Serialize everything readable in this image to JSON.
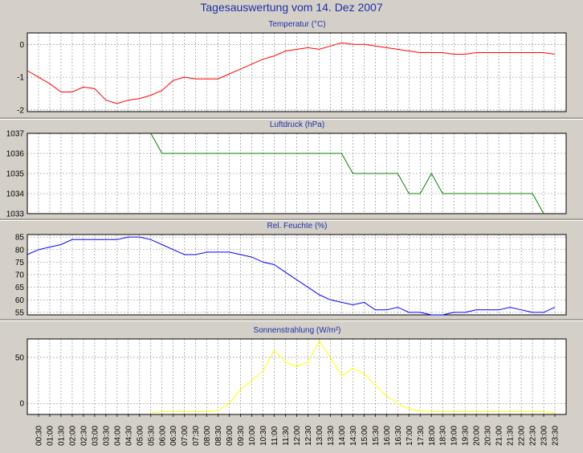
{
  "page_title": "Tagesauswertung vom 14. Dez 2007",
  "chart_data": [
    {
      "type": "line",
      "title": "Temperatur (°C)",
      "ylim": [
        -2.05,
        0.35
      ],
      "yticks": [
        0,
        -1,
        -2
      ],
      "color": "#ff0000",
      "x": [
        "00:00",
        "00:30",
        "01:00",
        "01:30",
        "02:00",
        "02:30",
        "03:00",
        "03:30",
        "04:00",
        "04:30",
        "05:00",
        "05:30",
        "06:00",
        "06:30",
        "07:00",
        "07:30",
        "08:00",
        "08:30",
        "09:00",
        "09:30",
        "10:00",
        "10:30",
        "11:00",
        "11:30",
        "12:00",
        "12:30",
        "13:00",
        "13:30",
        "14:00",
        "14:30",
        "15:00",
        "15:30",
        "16:00",
        "16:30",
        "17:00",
        "17:30",
        "18:00",
        "18:30",
        "19:00",
        "19:30",
        "20:00",
        "20:30",
        "21:00",
        "21:30",
        "22:00",
        "22:30",
        "23:00",
        "23:30"
      ],
      "values": [
        -0.8,
        -1.0,
        -1.2,
        -1.45,
        -1.45,
        -1.3,
        -1.35,
        -1.7,
        -1.8,
        -1.7,
        -1.65,
        -1.55,
        -1.4,
        -1.1,
        -1.0,
        -1.05,
        -1.05,
        -1.05,
        -0.9,
        -0.75,
        -0.6,
        -0.45,
        -0.35,
        -0.2,
        -0.15,
        -0.1,
        -0.15,
        -0.05,
        0.05,
        0.0,
        0.0,
        -0.05,
        -0.1,
        -0.15,
        -0.2,
        -0.25,
        -0.25,
        -0.25,
        -0.3,
        -0.3,
        -0.25,
        -0.25,
        -0.25,
        -0.25,
        -0.25,
        -0.25,
        -0.25,
        -0.3
      ]
    },
    {
      "type": "line",
      "title": "Luftdruck (hPa)",
      "ylim": [
        1033,
        1037
      ],
      "yticks": [
        1037,
        1036,
        1035,
        1034,
        1033
      ],
      "color": "#008000",
      "x": [
        "05:30",
        "06:00",
        "14:00",
        "14:30",
        "16:30",
        "17:00",
        "17:30",
        "18:00",
        "18:30",
        "22:30",
        "23:00"
      ],
      "values": [
        1037,
        1036,
        1036,
        1035,
        1035,
        1034,
        1034,
        1035,
        1034,
        1034,
        1033
      ]
    },
    {
      "type": "line",
      "title": "Rel. Feuchte (%)",
      "ylim": [
        54,
        86
      ],
      "yticks": [
        85,
        80,
        75,
        70,
        65,
        60,
        55
      ],
      "color": "#0000ff",
      "x": [
        "00:00",
        "00:30",
        "01:00",
        "01:30",
        "02:00",
        "02:30",
        "03:00",
        "03:30",
        "04:00",
        "04:30",
        "05:00",
        "05:30",
        "06:00",
        "06:30",
        "07:00",
        "07:30",
        "08:00",
        "08:30",
        "09:00",
        "09:30",
        "10:00",
        "10:30",
        "11:00",
        "11:30",
        "12:00",
        "12:30",
        "13:00",
        "13:30",
        "14:00",
        "14:30",
        "15:00",
        "15:30",
        "16:00",
        "16:30",
        "17:00",
        "17:30",
        "18:00",
        "18:30",
        "19:00",
        "19:30",
        "20:00",
        "20:30",
        "21:00",
        "21:30",
        "22:00",
        "22:30",
        "23:00",
        "23:30"
      ],
      "values": [
        78,
        80,
        81,
        82,
        84,
        84,
        84,
        84,
        84,
        85,
        85,
        84,
        82,
        80,
        78,
        78,
        79,
        79,
        79,
        78,
        77,
        75,
        74,
        71,
        68,
        65,
        62,
        60,
        59,
        58,
        59,
        56,
        56,
        57,
        55,
        55,
        54,
        54,
        55,
        55,
        56,
        56,
        56,
        57,
        56,
        55,
        55,
        57
      ]
    },
    {
      "type": "line",
      "title": "Sonnenstrahlung (W/m²)",
      "ylim": [
        -12,
        70
      ],
      "yticks": [
        50,
        0
      ],
      "color": "#ffff00",
      "x": [
        "05:30",
        "06:00",
        "06:30",
        "07:00",
        "07:30",
        "08:00",
        "08:30",
        "09:00",
        "09:30",
        "10:00",
        "10:30",
        "11:00",
        "11:30",
        "12:00",
        "12:30",
        "13:00",
        "13:30",
        "14:00",
        "14:30",
        "15:00",
        "15:30",
        "16:00",
        "16:30",
        "17:00",
        "17:30",
        "18:00",
        "18:30",
        "19:00",
        "19:30",
        "20:00",
        "20:30",
        "21:00",
        "21:30",
        "22:00",
        "22:30",
        "23:00",
        "23:30"
      ],
      "values": [
        -10,
        -9,
        -9,
        -9,
        -9,
        -9,
        -8,
        0,
        15,
        25,
        35,
        58,
        45,
        40,
        45,
        68,
        50,
        30,
        38,
        32,
        20,
        8,
        0,
        -6,
        -8,
        -9,
        -9,
        -9,
        -9,
        -9,
        -9,
        -9,
        -9,
        -9,
        -9,
        -9,
        -10
      ]
    }
  ],
  "x_tick_labels": [
    "00:30",
    "01:00",
    "01:30",
    "02:00",
    "02:30",
    "03:00",
    "03:30",
    "04:00",
    "04:30",
    "05:00",
    "05:30",
    "06:00",
    "06:30",
    "07:00",
    "07:30",
    "08:00",
    "08:30",
    "09:00",
    "09:30",
    "10:00",
    "10:30",
    "11:00",
    "11:30",
    "12:00",
    "12:30",
    "13:00",
    "13:30",
    "14:00",
    "14:30",
    "15:00",
    "15:30",
    "16:00",
    "16:30",
    "17:00",
    "17:30",
    "18:00",
    "18:30",
    "19:00",
    "19:30",
    "20:00",
    "20:30",
    "21:00",
    "21:30",
    "22:00",
    "22:30",
    "23:00",
    "23:30"
  ]
}
